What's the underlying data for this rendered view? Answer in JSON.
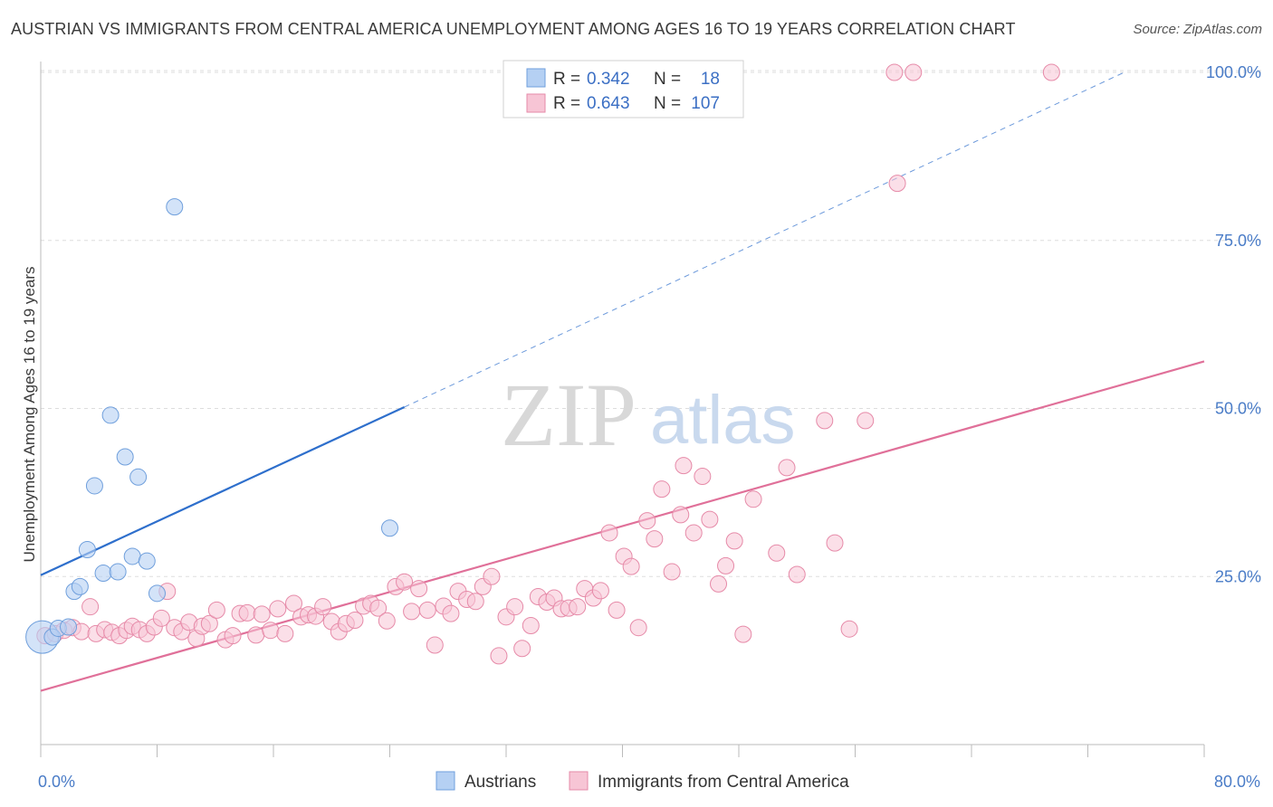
{
  "title": "AUSTRIAN VS IMMIGRANTS FROM CENTRAL AMERICA UNEMPLOYMENT AMONG AGES 16 TO 19 YEARS CORRELATION CHART",
  "source": "Source: ZipAtlas.com",
  "watermark": {
    "zip": "ZIP",
    "atlas": "atlas"
  },
  "colors": {
    "blue_fill": "#b5d0f3",
    "blue_stroke": "#6f9fdc",
    "blue_line": "#2e6fcc",
    "pink_fill": "#f7c5d5",
    "pink_stroke": "#e68aa8",
    "pink_line": "#e07099",
    "tick_text": "#4a7cc7",
    "grid": "#dddddd"
  },
  "legend": {
    "rows": [
      {
        "r_label": "R =",
        "r_value": "0.342",
        "n_label": "N =",
        "n_value": "18"
      },
      {
        "r_label": "R =",
        "r_value": "0.643",
        "n_label": "N =",
        "n_value": "107"
      }
    ]
  },
  "chart_data": {
    "type": "scatter",
    "title": "AUSTRIAN VS IMMIGRANTS FROM CENTRAL AMERICA UNEMPLOYMENT AMONG AGES 16 TO 19 YEARS CORRELATION CHART",
    "xlabel": "",
    "ylabel": "Unemployment Among Ages 16 to 19 years",
    "xlim": [
      0,
      80
    ],
    "ylim": [
      0,
      102
    ],
    "x_tick_labels": [
      {
        "value": 0,
        "label": "0.0%"
      },
      {
        "value": 80,
        "label": "80.0%"
      }
    ],
    "y_tick_labels": [
      {
        "value": 25,
        "label": "25.0%"
      },
      {
        "value": 50,
        "label": "50.0%"
      },
      {
        "value": 75,
        "label": "75.0%"
      },
      {
        "value": 100,
        "label": "100.0%"
      }
    ],
    "grid": true,
    "legend_position": "bottom-center",
    "series": [
      {
        "name": "Austrians",
        "color": "#b5d0f3",
        "r": 0.342,
        "n": 18,
        "trend": {
          "x": [
            0,
            25
          ],
          "y": [
            25.2,
            50.2
          ],
          "extend_to_x": 74.5,
          "extend_to_y": 100
        },
        "points": [
          {
            "x": 0.1,
            "y": 16.0,
            "big": true
          },
          {
            "x": 0.8,
            "y": 16.0
          },
          {
            "x": 1.2,
            "y": 17.3
          },
          {
            "x": 1.9,
            "y": 17.5
          },
          {
            "x": 2.3,
            "y": 22.8
          },
          {
            "x": 2.7,
            "y": 23.5
          },
          {
            "x": 3.2,
            "y": 29.0
          },
          {
            "x": 3.7,
            "y": 38.5
          },
          {
            "x": 4.3,
            "y": 25.5
          },
          {
            "x": 4.8,
            "y": 49.0
          },
          {
            "x": 5.3,
            "y": 25.7
          },
          {
            "x": 5.8,
            "y": 42.8
          },
          {
            "x": 6.3,
            "y": 28.0
          },
          {
            "x": 6.7,
            "y": 39.8
          },
          {
            "x": 7.3,
            "y": 27.3
          },
          {
            "x": 8.0,
            "y": 22.5
          },
          {
            "x": 9.2,
            "y": 80.0
          },
          {
            "x": 24.0,
            "y": 32.2
          }
        ]
      },
      {
        "name": "Immigrants from Central America",
        "color": "#f7c5d5",
        "r": 0.643,
        "n": 107,
        "trend": {
          "x": [
            0,
            80
          ],
          "y": [
            8.0,
            57.0
          ]
        },
        "points": [
          {
            "x": 0.3,
            "y": 16.2
          },
          {
            "x": 1.0,
            "y": 16.5
          },
          {
            "x": 1.6,
            "y": 17.0
          },
          {
            "x": 2.2,
            "y": 17.4
          },
          {
            "x": 2.8,
            "y": 16.8
          },
          {
            "x": 3.4,
            "y": 20.5
          },
          {
            "x": 3.8,
            "y": 16.5
          },
          {
            "x": 4.4,
            "y": 17.1
          },
          {
            "x": 4.9,
            "y": 16.7
          },
          {
            "x": 5.4,
            "y": 16.2
          },
          {
            "x": 5.9,
            "y": 17.0
          },
          {
            "x": 6.3,
            "y": 17.6
          },
          {
            "x": 6.8,
            "y": 17.1
          },
          {
            "x": 7.3,
            "y": 16.5
          },
          {
            "x": 7.8,
            "y": 17.5
          },
          {
            "x": 8.3,
            "y": 18.8
          },
          {
            "x": 8.7,
            "y": 22.8
          },
          {
            "x": 9.2,
            "y": 17.4
          },
          {
            "x": 9.7,
            "y": 16.8
          },
          {
            "x": 10.2,
            "y": 18.2
          },
          {
            "x": 10.7,
            "y": 15.8
          },
          {
            "x": 11.1,
            "y": 17.6
          },
          {
            "x": 11.6,
            "y": 18.0
          },
          {
            "x": 12.1,
            "y": 20.0
          },
          {
            "x": 12.7,
            "y": 15.6
          },
          {
            "x": 13.2,
            "y": 16.2
          },
          {
            "x": 13.7,
            "y": 19.5
          },
          {
            "x": 14.2,
            "y": 19.6
          },
          {
            "x": 14.8,
            "y": 16.3
          },
          {
            "x": 15.2,
            "y": 19.4
          },
          {
            "x": 15.8,
            "y": 17.0
          },
          {
            "x": 16.3,
            "y": 20.2
          },
          {
            "x": 16.8,
            "y": 16.5
          },
          {
            "x": 17.4,
            "y": 21.0
          },
          {
            "x": 17.9,
            "y": 19.0
          },
          {
            "x": 18.4,
            "y": 19.3
          },
          {
            "x": 18.9,
            "y": 19.1
          },
          {
            "x": 19.4,
            "y": 20.5
          },
          {
            "x": 20.0,
            "y": 18.3
          },
          {
            "x": 20.5,
            "y": 16.8
          },
          {
            "x": 21.0,
            "y": 18.0
          },
          {
            "x": 21.6,
            "y": 18.5
          },
          {
            "x": 22.2,
            "y": 20.6
          },
          {
            "x": 22.7,
            "y": 21.0
          },
          {
            "x": 23.2,
            "y": 20.3
          },
          {
            "x": 23.8,
            "y": 18.4
          },
          {
            "x": 24.4,
            "y": 23.5
          },
          {
            "x": 25.0,
            "y": 24.2
          },
          {
            "x": 25.5,
            "y": 19.8
          },
          {
            "x": 26.0,
            "y": 23.2
          },
          {
            "x": 26.6,
            "y": 20.0
          },
          {
            "x": 27.1,
            "y": 14.8
          },
          {
            "x": 27.7,
            "y": 20.6
          },
          {
            "x": 28.2,
            "y": 19.5
          },
          {
            "x": 28.7,
            "y": 22.8
          },
          {
            "x": 29.3,
            "y": 21.6
          },
          {
            "x": 29.9,
            "y": 21.3
          },
          {
            "x": 30.4,
            "y": 23.5
          },
          {
            "x": 31.0,
            "y": 25.0
          },
          {
            "x": 31.5,
            "y": 13.2
          },
          {
            "x": 32.0,
            "y": 19.0
          },
          {
            "x": 32.6,
            "y": 20.5
          },
          {
            "x": 33.1,
            "y": 14.3
          },
          {
            "x": 33.7,
            "y": 17.7
          },
          {
            "x": 34.2,
            "y": 22.0
          },
          {
            "x": 34.8,
            "y": 21.2
          },
          {
            "x": 35.3,
            "y": 21.8
          },
          {
            "x": 35.8,
            "y": 20.2
          },
          {
            "x": 36.3,
            "y": 20.3
          },
          {
            "x": 36.9,
            "y": 20.5
          },
          {
            "x": 37.4,
            "y": 23.2
          },
          {
            "x": 38.0,
            "y": 21.8
          },
          {
            "x": 38.5,
            "y": 22.9
          },
          {
            "x": 39.1,
            "y": 31.5
          },
          {
            "x": 39.6,
            "y": 20.0
          },
          {
            "x": 40.1,
            "y": 28.0
          },
          {
            "x": 40.6,
            "y": 26.5
          },
          {
            "x": 41.1,
            "y": 17.4
          },
          {
            "x": 41.7,
            "y": 33.3
          },
          {
            "x": 42.2,
            "y": 30.6
          },
          {
            "x": 42.7,
            "y": 38.0
          },
          {
            "x": 43.4,
            "y": 25.7
          },
          {
            "x": 44.0,
            "y": 34.2
          },
          {
            "x": 44.2,
            "y": 41.5
          },
          {
            "x": 44.9,
            "y": 31.5
          },
          {
            "x": 45.5,
            "y": 39.9
          },
          {
            "x": 46.0,
            "y": 33.5
          },
          {
            "x": 46.6,
            "y": 23.9
          },
          {
            "x": 47.1,
            "y": 26.6
          },
          {
            "x": 47.7,
            "y": 30.3
          },
          {
            "x": 48.3,
            "y": 16.4
          },
          {
            "x": 49.0,
            "y": 36.5
          },
          {
            "x": 50.6,
            "y": 28.5
          },
          {
            "x": 51.3,
            "y": 41.2
          },
          {
            "x": 52.0,
            "y": 25.3
          },
          {
            "x": 53.9,
            "y": 48.2
          },
          {
            "x": 54.6,
            "y": 30.0
          },
          {
            "x": 55.6,
            "y": 17.2
          },
          {
            "x": 56.7,
            "y": 48.2
          },
          {
            "x": 58.7,
            "y": 100.0
          },
          {
            "x": 60.0,
            "y": 100.0
          },
          {
            "x": 69.5,
            "y": 100.0
          },
          {
            "x": 58.9,
            "y": 83.5
          }
        ]
      }
    ]
  }
}
